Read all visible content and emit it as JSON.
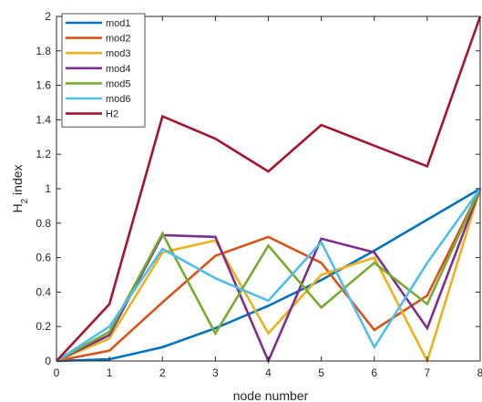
{
  "chart_data": {
    "type": "line",
    "xlabel": "node number",
    "ylabel": "H",
    "ylabel_sub": "2",
    "ylabel_suffix": " index",
    "xlim": [
      0,
      8
    ],
    "ylim": [
      0,
      2
    ],
    "xticks": [
      0,
      1,
      2,
      3,
      4,
      5,
      6,
      7,
      8
    ],
    "yticks": [
      0,
      0.2,
      0.4,
      0.6,
      0.8,
      1,
      1.2,
      1.4,
      1.6,
      1.8,
      2
    ],
    "grid": false,
    "legend_position": "top-left",
    "x": [
      0,
      1,
      2,
      3,
      4,
      5,
      6,
      7,
      8
    ],
    "series": [
      {
        "name": "mod1",
        "color": "#0072BD",
        "values": [
          0,
          0.01,
          0.08,
          0.19,
          0.32,
          0.47,
          0.64,
          0.82,
          1.0
        ]
      },
      {
        "name": "mod2",
        "color": "#D95319",
        "values": [
          0,
          0.06,
          0.34,
          0.61,
          0.72,
          0.57,
          0.18,
          0.38,
          1.0
        ]
      },
      {
        "name": "mod3",
        "color": "#EDB120",
        "values": [
          0,
          0.13,
          0.63,
          0.7,
          0.16,
          0.5,
          0.6,
          0.0,
          1.0
        ]
      },
      {
        "name": "mod4",
        "color": "#7E2F8E",
        "values": [
          0,
          0.15,
          0.73,
          0.72,
          0.0,
          0.71,
          0.63,
          0.19,
          1.0
        ]
      },
      {
        "name": "mod5",
        "color": "#77AC30",
        "values": [
          0,
          0.17,
          0.74,
          0.16,
          0.67,
          0.31,
          0.57,
          0.33,
          1.0
        ]
      },
      {
        "name": "mod6",
        "color": "#4DBEEE",
        "values": [
          0,
          0.2,
          0.65,
          0.48,
          0.35,
          0.69,
          0.08,
          0.57,
          1.0
        ]
      },
      {
        "name": "H2",
        "color": "#A2142F",
        "values": [
          0,
          0.33,
          1.42,
          1.29,
          1.1,
          1.37,
          1.25,
          1.13,
          2.0
        ]
      }
    ]
  }
}
